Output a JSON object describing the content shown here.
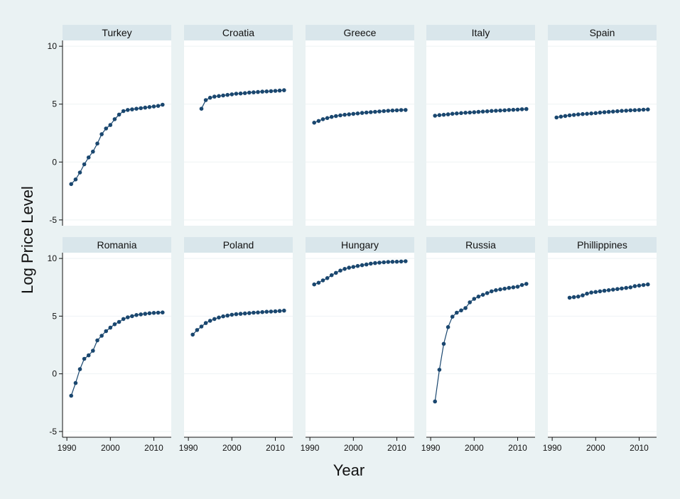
{
  "chart_data": {
    "type": "line",
    "xlabel": "Year",
    "ylabel": "Log Price Level",
    "xlim": [
      1989,
      2014
    ],
    "ylim": [
      -5.5,
      10.5
    ],
    "xticks": [
      1990,
      2000,
      2010
    ],
    "yticks": [
      -5,
      0,
      5,
      10
    ],
    "xtick_labels": [
      "1990",
      "2000",
      "2010"
    ],
    "ytick_labels": [
      "-5",
      "0",
      "5",
      "10"
    ],
    "grid": true,
    "colors": {
      "background": "#eaf2f3",
      "panel": "#ffffff",
      "strip": "#d9e6eb",
      "series": "#1a476f"
    },
    "panels": [
      {
        "name": "Turkey",
        "x": [
          1991,
          1992,
          1993,
          1994,
          1995,
          1996,
          1997,
          1998,
          1999,
          2000,
          2001,
          2002,
          2003,
          2004,
          2005,
          2006,
          2007,
          2008,
          2009,
          2010,
          2011,
          2012
        ],
        "y": [
          -1.9,
          -1.5,
          -0.9,
          -0.2,
          0.4,
          0.9,
          1.6,
          2.4,
          2.9,
          3.2,
          3.7,
          4.1,
          4.4,
          4.5,
          4.55,
          4.6,
          4.65,
          4.7,
          4.75,
          4.8,
          4.85,
          4.95
        ]
      },
      {
        "name": "Croatia",
        "x": [
          1993,
          1994,
          1995,
          1996,
          1997,
          1998,
          1999,
          2000,
          2001,
          2002,
          2003,
          2004,
          2005,
          2006,
          2007,
          2008,
          2009,
          2010,
          2011,
          2012
        ],
        "y": [
          4.6,
          5.35,
          5.55,
          5.65,
          5.7,
          5.75,
          5.8,
          5.85,
          5.9,
          5.92,
          5.95,
          6.0,
          6.02,
          6.05,
          6.08,
          6.1,
          6.12,
          6.15,
          6.17,
          6.2
        ]
      },
      {
        "name": "Greece",
        "x": [
          1991,
          1992,
          1993,
          1994,
          1995,
          1996,
          1997,
          1998,
          1999,
          2000,
          2001,
          2002,
          2003,
          2004,
          2005,
          2006,
          2007,
          2008,
          2009,
          2010,
          2011,
          2012
        ],
        "y": [
          3.4,
          3.55,
          3.7,
          3.8,
          3.9,
          3.97,
          4.03,
          4.08,
          4.12,
          4.16,
          4.2,
          4.24,
          4.28,
          4.31,
          4.34,
          4.37,
          4.4,
          4.43,
          4.45,
          4.47,
          4.49,
          4.5
        ]
      },
      {
        "name": "Italy",
        "x": [
          1991,
          1992,
          1993,
          1994,
          1995,
          1996,
          1997,
          1998,
          1999,
          2000,
          2001,
          2002,
          2003,
          2004,
          2005,
          2006,
          2007,
          2008,
          2009,
          2010,
          2011,
          2012
        ],
        "y": [
          4.0,
          4.05,
          4.08,
          4.12,
          4.17,
          4.2,
          4.23,
          4.26,
          4.28,
          4.3,
          4.33,
          4.36,
          4.38,
          4.41,
          4.43,
          4.45,
          4.47,
          4.5,
          4.51,
          4.53,
          4.56,
          4.58
        ]
      },
      {
        "name": "Spain",
        "x": [
          1991,
          1992,
          1993,
          1994,
          1995,
          1996,
          1997,
          1998,
          1999,
          2000,
          2001,
          2002,
          2003,
          2004,
          2005,
          2006,
          2007,
          2008,
          2009,
          2010,
          2011,
          2012
        ],
        "y": [
          3.85,
          3.92,
          3.98,
          4.03,
          4.07,
          4.11,
          4.14,
          4.17,
          4.2,
          4.23,
          4.27,
          4.3,
          4.33,
          4.36,
          4.39,
          4.42,
          4.44,
          4.47,
          4.48,
          4.5,
          4.52,
          4.54
        ]
      },
      {
        "name": "Romania",
        "x": [
          1991,
          1992,
          1993,
          1994,
          1995,
          1996,
          1997,
          1998,
          1999,
          2000,
          2001,
          2002,
          2003,
          2004,
          2005,
          2006,
          2007,
          2008,
          2009,
          2010,
          2011,
          2012
        ],
        "y": [
          -1.9,
          -0.8,
          0.4,
          1.3,
          1.6,
          2.0,
          2.9,
          3.3,
          3.7,
          4.0,
          4.3,
          4.5,
          4.75,
          4.9,
          5.0,
          5.1,
          5.15,
          5.2,
          5.25,
          5.28,
          5.3,
          5.32
        ]
      },
      {
        "name": "Poland",
        "x": [
          1991,
          1992,
          1993,
          1994,
          1995,
          1996,
          1997,
          1998,
          1999,
          2000,
          2001,
          2002,
          2003,
          2004,
          2005,
          2006,
          2007,
          2008,
          2009,
          2010,
          2011,
          2012
        ],
        "y": [
          3.4,
          3.8,
          4.1,
          4.4,
          4.6,
          4.75,
          4.88,
          4.98,
          5.05,
          5.12,
          5.17,
          5.2,
          5.23,
          5.26,
          5.3,
          5.32,
          5.35,
          5.38,
          5.4,
          5.42,
          5.45,
          5.48
        ]
      },
      {
        "name": "Hungary",
        "x": [
          1991,
          1992,
          1993,
          1994,
          1995,
          1996,
          1997,
          1998,
          1999,
          2000,
          2001,
          2002,
          2003,
          2004,
          2005,
          2006,
          2007,
          2008,
          2009,
          2010,
          2011,
          2012
        ],
        "y": [
          7.75,
          7.9,
          8.1,
          8.3,
          8.55,
          8.75,
          8.95,
          9.1,
          9.2,
          9.27,
          9.35,
          9.42,
          9.48,
          9.55,
          9.6,
          9.64,
          9.67,
          9.7,
          9.71,
          9.72,
          9.74,
          9.76
        ]
      },
      {
        "name": "Russia",
        "x": [
          1991,
          1992,
          1993,
          1994,
          1995,
          1996,
          1997,
          1998,
          1999,
          2000,
          2001,
          2002,
          2003,
          2004,
          2005,
          2006,
          2007,
          2008,
          2009,
          2010,
          2011,
          2012
        ],
        "y": [
          -2.4,
          0.35,
          2.6,
          4.05,
          4.95,
          5.3,
          5.5,
          5.7,
          6.2,
          6.5,
          6.7,
          6.85,
          7.0,
          7.15,
          7.25,
          7.32,
          7.38,
          7.45,
          7.5,
          7.55,
          7.7,
          7.8
        ]
      },
      {
        "name": "Phillippines",
        "x": [
          1994,
          1995,
          1996,
          1997,
          1998,
          1999,
          2000,
          2001,
          2002,
          2003,
          2004,
          2005,
          2006,
          2007,
          2008,
          2009,
          2010,
          2011,
          2012
        ],
        "y": [
          6.6,
          6.65,
          6.7,
          6.8,
          6.95,
          7.05,
          7.1,
          7.15,
          7.2,
          7.25,
          7.3,
          7.35,
          7.4,
          7.45,
          7.5,
          7.6,
          7.65,
          7.7,
          7.75
        ]
      }
    ]
  }
}
